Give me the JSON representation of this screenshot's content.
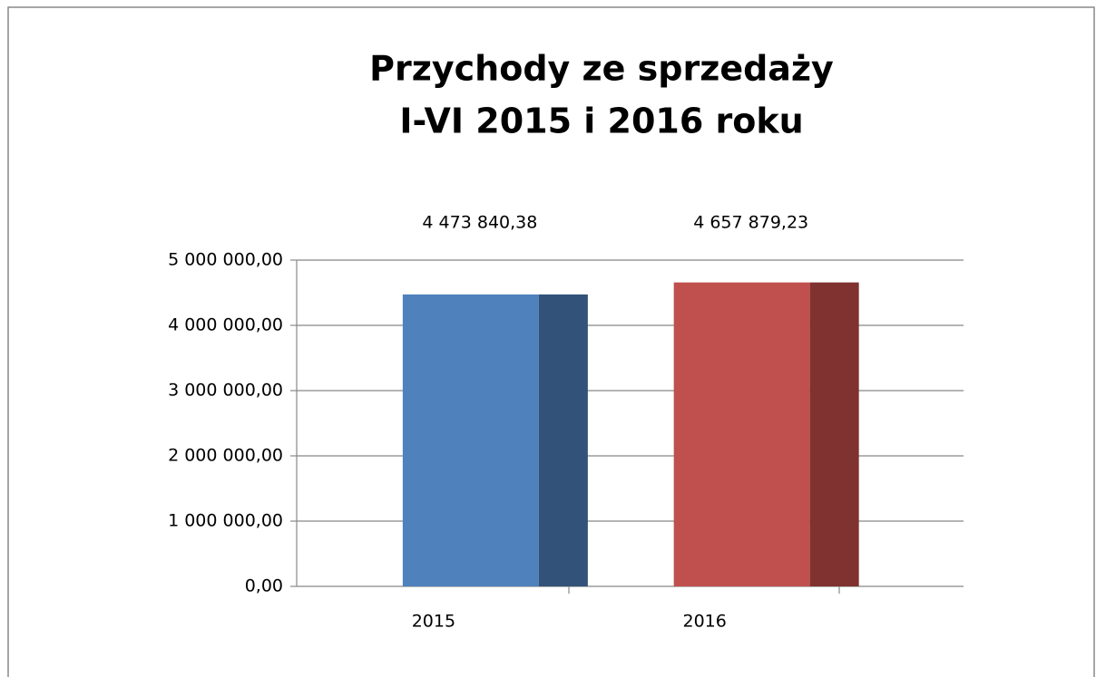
{
  "chart_data": {
    "type": "bar3d",
    "title": [
      "Przychody ze sprzedaży",
      "I-VI 2015 i 2016 roku"
    ],
    "categories": [
      "2015",
      "2016"
    ],
    "values": [
      4473840.38,
      4657879.23
    ],
    "value_labels": [
      "4 473 840,38",
      "4 657 879,23"
    ],
    "colors": [
      "#4f81bd",
      "#c0504d"
    ],
    "side_colors": [
      "#325279",
      "#7f3230"
    ],
    "ylim": [
      0,
      5000000
    ],
    "yticks": [
      {
        "value": 0,
        "label": "0,00"
      },
      {
        "value": 1000000,
        "label": "1 000 000,00"
      },
      {
        "value": 2000000,
        "label": "2 000 000,00"
      },
      {
        "value": 3000000,
        "label": "3 000 000,00"
      },
      {
        "value": 4000000,
        "label": "4 000 000,00"
      },
      {
        "value": 5000000,
        "label": "5 000 000,00"
      }
    ],
    "grid": true
  }
}
